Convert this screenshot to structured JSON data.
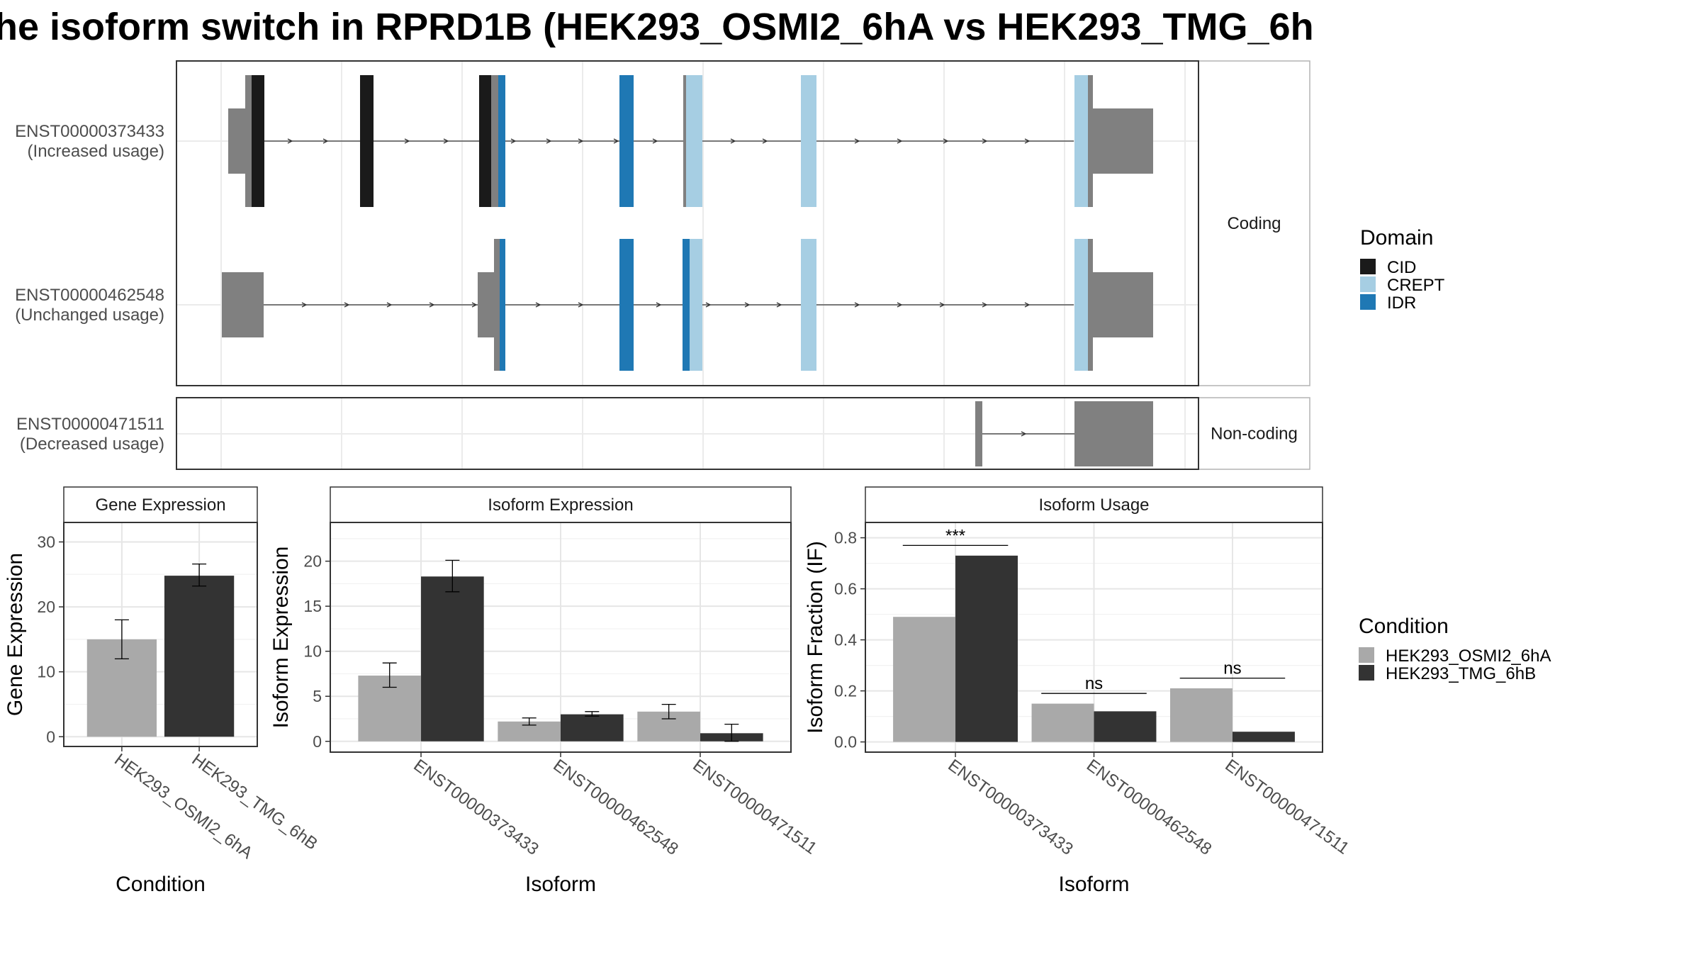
{
  "title": "he isoform switch in RPRD1B (HEK293_OSMI2_6hA vs HEK293_TMG_6h",
  "colors": {
    "cid": "#1a1a1a",
    "crept": "#a6cee3",
    "idr": "#1f78b4",
    "utr": "#808080",
    "cond_a": "#a9a9a9",
    "cond_b": "#333333"
  },
  "structure": {
    "facet_coding": "Coding",
    "facet_noncoding": "Non-coding",
    "transcripts": [
      {
        "id": "ENST00000373433",
        "note": "(Increased usage)"
      },
      {
        "id": "ENST00000462548",
        "note": "(Unchanged usage)"
      },
      {
        "id": "ENST00000471511",
        "note": "(Decreased usage)"
      }
    ]
  },
  "legend_domain": {
    "title": "Domain",
    "items": [
      {
        "label": "CID",
        "color": "#1a1a1a"
      },
      {
        "label": "CREPT",
        "color": "#a6cee3"
      },
      {
        "label": "IDR",
        "color": "#1f78b4"
      }
    ]
  },
  "legend_condition": {
    "title": "Condition",
    "items": [
      {
        "label": "HEK293_OSMI2_6hA",
        "color": "#a9a9a9"
      },
      {
        "label": "HEK293_TMG_6hB",
        "color": "#333333"
      }
    ]
  },
  "chart_data": [
    {
      "type": "bar",
      "title": "Gene Expression",
      "xlabel": "Condition",
      "ylabel": "Gene Expression",
      "categories": [
        "HEK293_OSMI2_6hA",
        "HEK293_TMG_6hB"
      ],
      "values": [
        15.0,
        24.8
      ],
      "error_low": [
        12.0,
        23.2
      ],
      "error_high": [
        18.0,
        26.6
      ],
      "ylim": [
        -1.5,
        33
      ],
      "yticks": [
        0,
        10,
        20,
        30
      ]
    },
    {
      "type": "bar",
      "title": "Isoform Expression",
      "xlabel": "Isoform",
      "ylabel": "Isoform Expression",
      "categories": [
        "ENST00000373433",
        "ENST00000462548",
        "ENST00000471511"
      ],
      "series": [
        {
          "name": "HEK293_OSMI2_6hA",
          "values": [
            7.3,
            2.2,
            3.3
          ],
          "error_low": [
            6.0,
            1.8,
            2.5
          ],
          "error_high": [
            8.7,
            2.6,
            4.1
          ]
        },
        {
          "name": "HEK293_TMG_6hB",
          "values": [
            18.3,
            3.0,
            0.9
          ],
          "error_low": [
            16.6,
            2.8,
            0.0
          ],
          "error_high": [
            20.1,
            3.3,
            1.9
          ]
        }
      ],
      "ylim": [
        -1.2,
        24.3
      ],
      "yticks": [
        0,
        5,
        10,
        15,
        20
      ]
    },
    {
      "type": "bar",
      "title": "Isoform Usage",
      "xlabel": "Isoform",
      "ylabel": "Isoform Fraction (IF)",
      "categories": [
        "ENST00000373433",
        "ENST00000462548",
        "ENST00000471511"
      ],
      "series": [
        {
          "name": "HEK293_OSMI2_6hA",
          "values": [
            0.49,
            0.15,
            0.21
          ]
        },
        {
          "name": "HEK293_TMG_6hB",
          "values": [
            0.73,
            0.12,
            0.04
          ]
        }
      ],
      "significance": [
        "***",
        "ns",
        "ns"
      ],
      "significance_y": [
        0.77,
        0.19,
        0.25
      ],
      "ylim": [
        -0.04,
        0.86
      ],
      "yticks": [
        0.0,
        0.2,
        0.4,
        0.6,
        0.8
      ],
      "ytick_labels": [
        "0.0",
        "0.2",
        "0.4",
        "0.6",
        "0.8"
      ]
    }
  ]
}
